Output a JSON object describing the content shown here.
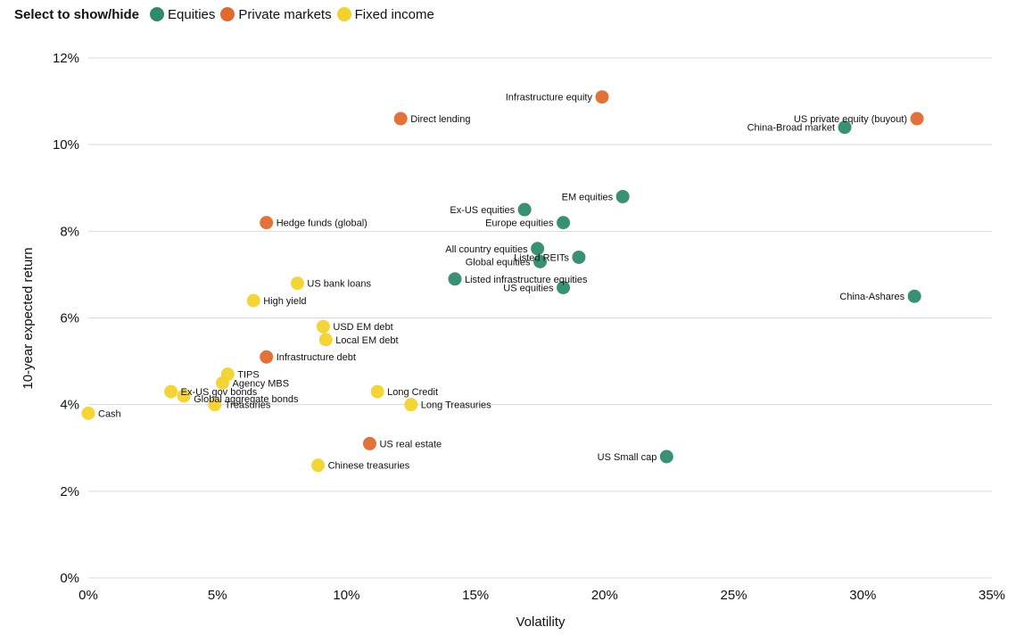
{
  "legend": {
    "title": "Select to show/hide",
    "items": [
      {
        "label": "Equities",
        "color": "#2e8b6a"
      },
      {
        "label": "Private markets",
        "color": "#e06a2e"
      },
      {
        "label": "Fixed income",
        "color": "#f2d22e"
      }
    ]
  },
  "chart_data": {
    "type": "scatter",
    "xlabel": "Volatility",
    "ylabel": "10-year expected return",
    "xlim": [
      0,
      35
    ],
    "ylim": [
      0,
      12
    ],
    "x_ticks": [
      0,
      5,
      10,
      15,
      20,
      25,
      30,
      35
    ],
    "y_ticks": [
      0,
      2,
      4,
      6,
      8,
      10,
      12
    ],
    "x_tick_labels": [
      "0%",
      "5%",
      "10%",
      "15%",
      "20%",
      "25%",
      "30%",
      "35%"
    ],
    "y_tick_labels": [
      "0%",
      "2%",
      "4%",
      "6%",
      "8%",
      "10%",
      "12%"
    ],
    "grid": "horizontal",
    "series": [
      {
        "name": "Equities",
        "color": "#2e8b6a",
        "points": [
          {
            "label": "China-Broad market",
            "x": 29.3,
            "y": 10.4
          },
          {
            "label": "EM equities",
            "x": 20.7,
            "y": 8.8
          },
          {
            "label": "Ex-US equities",
            "x": 16.9,
            "y": 8.5
          },
          {
            "label": "Europe equities",
            "x": 18.4,
            "y": 8.2
          },
          {
            "label": "All country equities",
            "x": 17.4,
            "y": 7.6
          },
          {
            "label": "Global equities",
            "x": 17.5,
            "y": 7.3
          },
          {
            "label": "Listed REITs",
            "x": 19.0,
            "y": 7.4
          },
          {
            "label": "Listed infrastructure equities",
            "x": 14.2,
            "y": 6.9
          },
          {
            "label": "US equities",
            "x": 18.4,
            "y": 6.7
          },
          {
            "label": "China-Ashares",
            "x": 32.0,
            "y": 6.5
          },
          {
            "label": "US Small cap",
            "x": 22.4,
            "y": 2.8
          }
        ]
      },
      {
        "name": "Private markets",
        "color": "#e06a2e",
        "points": [
          {
            "label": "Infrastructure equity",
            "x": 19.9,
            "y": 11.1
          },
          {
            "label": "Direct lending",
            "x": 12.1,
            "y": 10.6
          },
          {
            "label": "US private equity (buyout)",
            "x": 32.1,
            "y": 10.6
          },
          {
            "label": "Hedge funds (global)",
            "x": 6.9,
            "y": 8.2
          },
          {
            "label": "Infrastructure debt",
            "x": 6.9,
            "y": 5.1
          },
          {
            "label": "US real estate",
            "x": 10.9,
            "y": 3.1
          }
        ]
      },
      {
        "name": "Fixed income",
        "color": "#f2d22e",
        "points": [
          {
            "label": "US bank loans",
            "x": 8.1,
            "y": 6.8
          },
          {
            "label": "High yield",
            "x": 6.4,
            "y": 6.4
          },
          {
            "label": "USD EM debt",
            "x": 9.1,
            "y": 5.8
          },
          {
            "label": "Local EM debt",
            "x": 9.2,
            "y": 5.5
          },
          {
            "label": "TIPS",
            "x": 5.4,
            "y": 4.7
          },
          {
            "label": "Agency MBS",
            "x": 5.2,
            "y": 4.5
          },
          {
            "label": "Ex-US gov bonds",
            "x": 3.2,
            "y": 4.3
          },
          {
            "label": "Global aggregate bonds",
            "x": 3.7,
            "y": 4.2
          },
          {
            "label": "Treasuries",
            "x": 4.9,
            "y": 4.0
          },
          {
            "label": "Cash",
            "x": 0.0,
            "y": 3.8
          },
          {
            "label": "Long Credit",
            "x": 11.2,
            "y": 4.3
          },
          {
            "label": "Long Treasuries",
            "x": 12.5,
            "y": 4.0
          },
          {
            "label": "Chinese treasuries",
            "x": 8.9,
            "y": 2.6
          }
        ]
      }
    ]
  }
}
